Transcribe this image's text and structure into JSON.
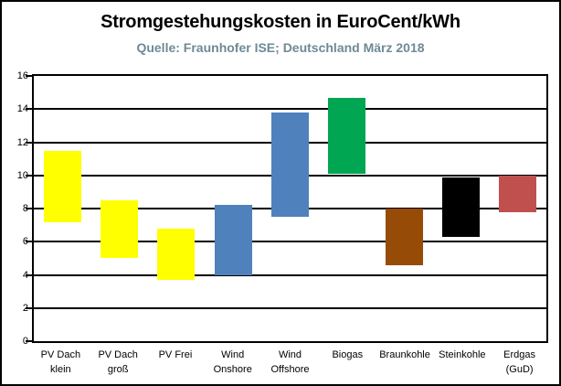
{
  "header": {
    "title": "Stromgestehungskosten in EuroCent/kWh",
    "subtitle": "Quelle: Fraunhofer ISE; Deutschland März 2018",
    "title_color": "#000000",
    "subtitle_color": "#6d8a94"
  },
  "chart_data": {
    "type": "bar",
    "subtype": "floating-range-columns",
    "title": "Stromgestehungskosten in EuroCent/kWh",
    "subtitle": "Quelle: Fraunhofer ISE; Deutschland März 2018",
    "xlabel": "",
    "ylabel": "",
    "ylim": [
      0,
      16
    ],
    "yticks": [
      0,
      2,
      4,
      6,
      8,
      10,
      12,
      14,
      16
    ],
    "grid": "horizontal-black-every-2",
    "legend": "none",
    "categories": [
      "PV Dach klein",
      "PV Dach groß",
      "PV Frei",
      "Wind Onshore",
      "Wind Offshore",
      "Biogas",
      "Braunkohle",
      "Steinkohle",
      "Erdgas (GuD)"
    ],
    "category_label_lines": [
      [
        "PV Dach",
        "klein"
      ],
      [
        "PV Dach",
        "groß"
      ],
      [
        "PV Frei"
      ],
      [
        "Wind",
        "Onshore"
      ],
      [
        "Wind",
        "Offshore"
      ],
      [
        "Biogas"
      ],
      [
        "Braunkohle"
      ],
      [
        "Steinkohle"
      ],
      [
        "Erdgas",
        "(GuD)"
      ]
    ],
    "ranges_min_max_eurocent_per_kwh": [
      [
        7.2,
        11.5
      ],
      [
        5.0,
        8.5
      ],
      [
        3.7,
        6.8
      ],
      [
        4.0,
        8.2
      ],
      [
        7.5,
        13.8
      ],
      [
        10.1,
        14.7
      ],
      [
        4.6,
        8.0
      ],
      [
        6.3,
        9.9
      ],
      [
        7.8,
        10.0
      ]
    ],
    "bar_colors": [
      "#ffff00",
      "#ffff00",
      "#ffff00",
      "#4f81bd",
      "#4f81bd",
      "#00a651",
      "#964b06",
      "#000000",
      "#c0504d"
    ]
  }
}
